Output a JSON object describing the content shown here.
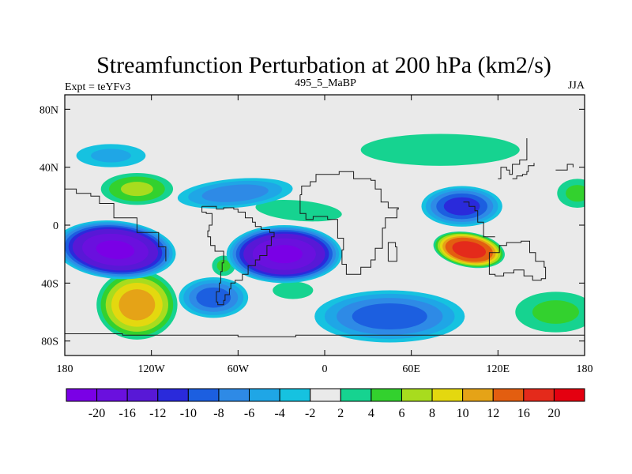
{
  "chart_data": {
    "type": "heatmap",
    "title": "Streamfunction Perturbation at 200 hPa (km2/s)",
    "left_string": "Expt = teYFv3",
    "center_string": "495_5_MaBP",
    "right_string": "JJA",
    "xlabel": "",
    "ylabel": "",
    "xlim": [
      -180,
      180
    ],
    "ylim": [
      -90,
      90
    ],
    "x_ticks": [
      {
        "value": -180,
        "label": "180"
      },
      {
        "value": -120,
        "label": "120W"
      },
      {
        "value": -60,
        "label": "60W"
      },
      {
        "value": 0,
        "label": "0"
      },
      {
        "value": 60,
        "label": "60E"
      },
      {
        "value": 120,
        "label": "120E"
      },
      {
        "value": 180,
        "label": "180"
      }
    ],
    "y_ticks": [
      {
        "value": 80,
        "label": "80N"
      },
      {
        "value": 40,
        "label": "40N"
      },
      {
        "value": 0,
        "label": "0"
      },
      {
        "value": -40,
        "label": "40S"
      },
      {
        "value": -80,
        "label": "80S"
      }
    ],
    "colorbar": {
      "levels": [
        -20,
        -16,
        -12,
        -10,
        -8,
        -6,
        -4,
        -2,
        2,
        4,
        6,
        8,
        10,
        12,
        16,
        20
      ],
      "labels": [
        "-20",
        "-16",
        "-12",
        "-10",
        "-8",
        "-6",
        "-4",
        "-2",
        "2",
        "4",
        "6",
        "8",
        "10",
        "12",
        "16",
        "20"
      ],
      "colors": [
        "#7A00E6",
        "#6A10DE",
        "#5818D6",
        "#2A2ADB",
        "#1C5FE0",
        "#2E8AE6",
        "#1FA6E6",
        "#16C2E0",
        "#EAEAEA",
        "#16D390",
        "#33D12E",
        "#A8DC1E",
        "#E4D80F",
        "#E5A317",
        "#E35E10",
        "#E42A1B",
        "#E40010"
      ]
    },
    "field_extrema": [
      {
        "lon": -145,
        "lat": -17,
        "value": -22
      },
      {
        "lon": -28,
        "lat": -20,
        "value": -22
      },
      {
        "lon": 95,
        "lat": 13,
        "value": -12
      },
      {
        "lon": 45,
        "lat": -63,
        "value": -10
      },
      {
        "lon": -77,
        "lat": -50,
        "value": -10
      },
      {
        "lon": -62,
        "lat": 22,
        "value": -8
      },
      {
        "lon": -148,
        "lat": 48,
        "value": -5
      },
      {
        "lon": 100,
        "lat": -17,
        "value": 20
      },
      {
        "lon": -130,
        "lat": -55,
        "value": 12
      },
      {
        "lon": -130,
        "lat": 25,
        "value": 7
      },
      {
        "lon": 80,
        "lat": 52,
        "value": 4
      },
      {
        "lon": -18,
        "lat": 10,
        "value": 4
      },
      {
        "lon": -22,
        "lat": -45,
        "value": 4
      },
      {
        "lon": -70,
        "lat": -28,
        "value": 5
      },
      {
        "lon": 175,
        "lat": 22,
        "value": 5
      },
      {
        "lon": 160,
        "lat": -60,
        "value": 5
      }
    ]
  }
}
